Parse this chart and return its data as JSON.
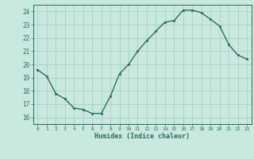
{
  "x": [
    0,
    1,
    2,
    3,
    4,
    5,
    6,
    7,
    8,
    9,
    10,
    11,
    12,
    13,
    14,
    15,
    16,
    17,
    18,
    19,
    20,
    21,
    22,
    23
  ],
  "y": [
    19.6,
    19.1,
    17.8,
    17.4,
    16.7,
    16.6,
    16.3,
    16.3,
    17.6,
    19.3,
    20.0,
    21.0,
    21.8,
    22.5,
    23.2,
    23.3,
    24.1,
    24.1,
    23.9,
    23.4,
    22.9,
    21.5,
    20.7,
    20.4
  ],
  "bg_color": "#c8e8e0",
  "grid_color": "#b0d0c8",
  "line_color": "#2d6e5e",
  "marker_color": "#2d6e5e",
  "xlabel": "Humidex (Indice chaleur)",
  "xlim": [
    -0.5,
    23.5
  ],
  "ylim": [
    15.5,
    24.5
  ],
  "yticks": [
    16,
    17,
    18,
    19,
    20,
    21,
    22,
    23,
    24
  ],
  "xticks": [
    0,
    1,
    2,
    3,
    4,
    5,
    6,
    7,
    8,
    9,
    10,
    11,
    12,
    13,
    14,
    15,
    16,
    17,
    18,
    19,
    20,
    21,
    22,
    23
  ],
  "font_color": "#2d6e5e"
}
